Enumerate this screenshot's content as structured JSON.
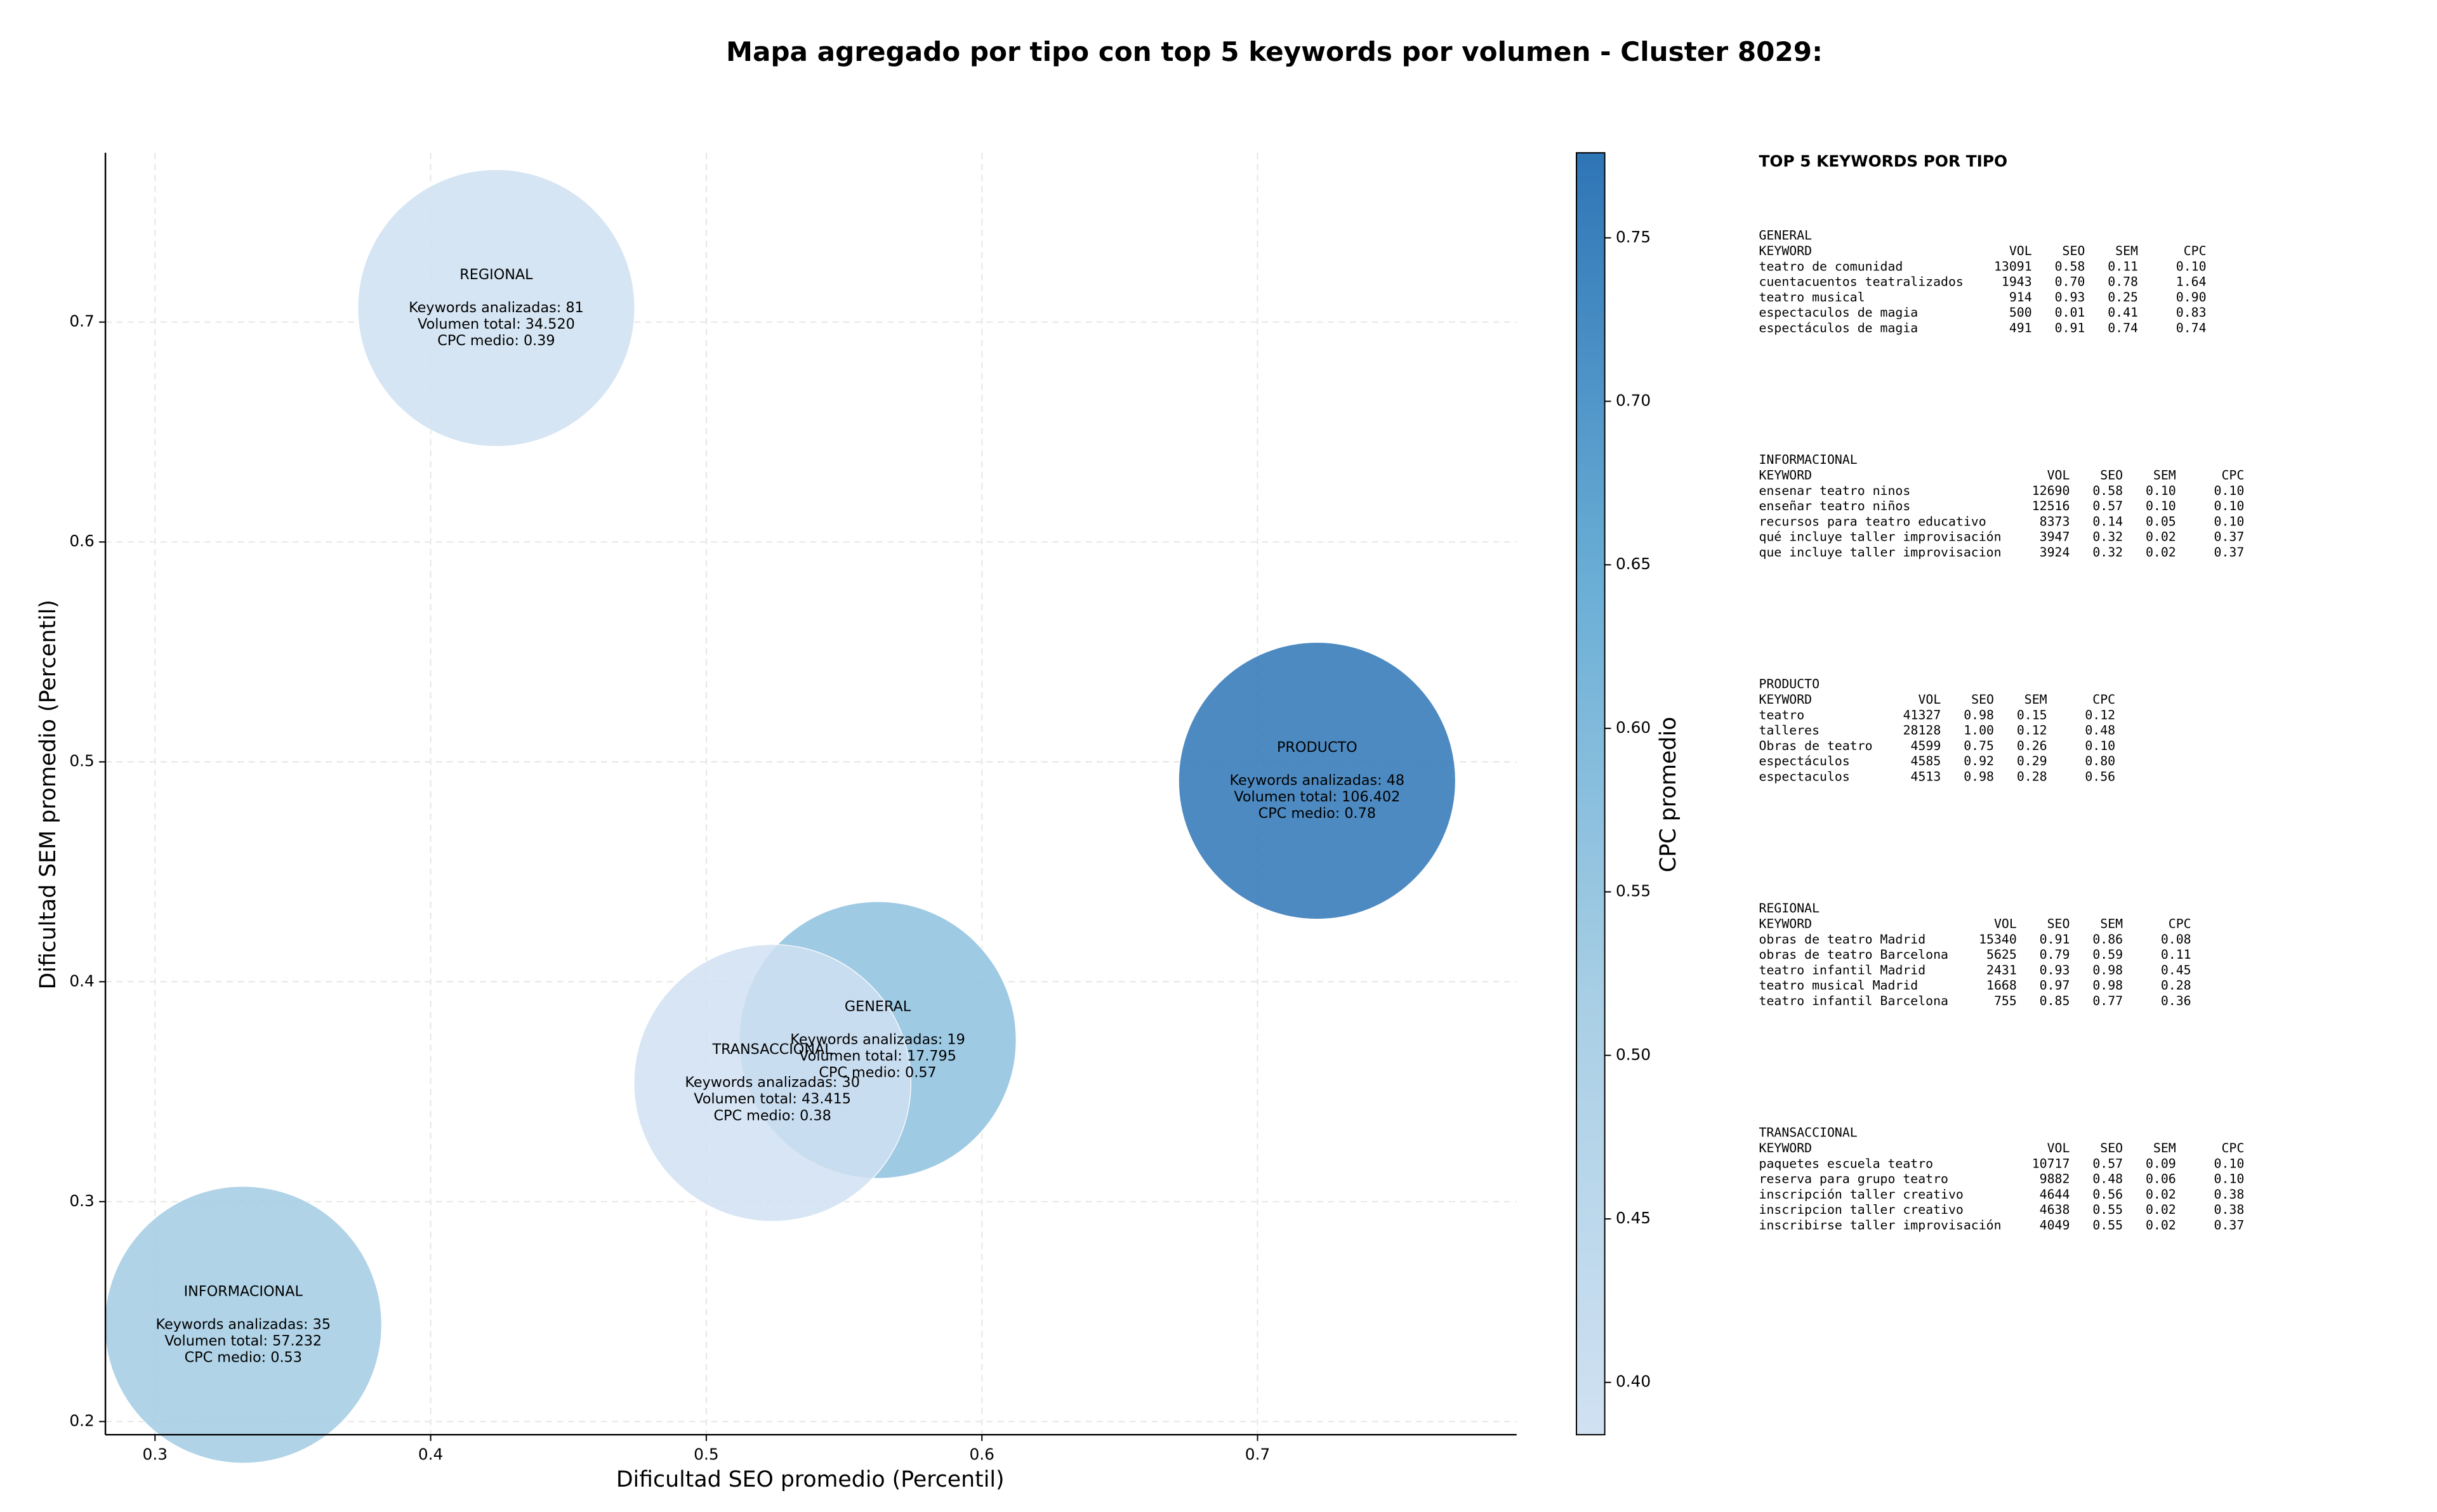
{
  "chart_data": {
    "type": "scatter",
    "title": "Mapa agregado por tipo con top 5 keywords por volumen - Cluster 8029:",
    "xlabel": "Dificultad SEO promedio (Percentil)",
    "ylabel": "Dificultad SEM promedio (Percentil)",
    "xlim": [
      0.282,
      0.794
    ],
    "ylim": [
      0.194,
      0.777
    ],
    "xticks": [
      0.3,
      0.4,
      0.5,
      0.6,
      0.7
    ],
    "yticks": [
      0.2,
      0.3,
      0.4,
      0.5,
      0.6,
      0.7
    ],
    "grid": true,
    "colorbar": {
      "label": "CPC promedio",
      "lim": [
        0.384,
        0.776
      ],
      "ticks": [
        {
          "value": 0.4,
          "label": "0.40"
        },
        0.45,
        {
          "value": 0.5,
          "label": "0.50"
        },
        0.55,
        {
          "value": 0.6,
          "label": "0.60"
        },
        0.65,
        {
          "value": 0.7,
          "label": "0.70"
        },
        0.75
      ],
      "colormap": [
        "#d0e1f2",
        "#a9cfe5",
        "#6aaed6",
        "#2e75b6"
      ]
    },
    "points": [
      {
        "name": "REGIONAL",
        "x": 0.4238,
        "y": 0.7064,
        "cpc": 0.39,
        "lines": [
          "Keywords analizadas: 81",
          "Volumen total: 34.520",
          "CPC medio: 0.39"
        ]
      },
      {
        "name": "PRODUCTO",
        "x": 0.7216,
        "y": 0.4914,
        "cpc": 0.78,
        "lines": [
          "Keywords analizadas: 48",
          "Volumen total: 106.402",
          "CPC medio: 0.78"
        ]
      },
      {
        "name": "GENERAL",
        "x": 0.5622,
        "y": 0.3735,
        "cpc": 0.57,
        "lines": [
          "Keywords analizadas: 19",
          "Volumen total: 17.795",
          "CPC medio: 0.57"
        ]
      },
      {
        "name": "TRANSACCIONAL",
        "x": 0.524,
        "y": 0.354,
        "cpc": 0.38,
        "lines": [
          "Keywords analizadas: 30",
          "Volumen total: 43.415",
          "CPC medio: 0.38"
        ]
      },
      {
        "name": "INFORMACIONAL",
        "x": 0.332,
        "y": 0.244,
        "cpc": 0.53,
        "lines": [
          "Keywords analizadas: 35",
          "Volumen total: 57.232",
          "CPC medio: 0.53"
        ]
      }
    ]
  },
  "panel": {
    "title": "TOP 5 KEYWORDS POR TIPO",
    "groups": [
      {
        "name": "GENERAL",
        "columns": [
          "KEYWORD",
          "VOL",
          "SEO",
          "SEM",
          "CPC"
        ],
        "rows": [
          [
            "teatro de comunidad",
            "13091",
            "0.58",
            "0.11",
            "0.10"
          ],
          [
            "cuentacuentos teatralizados",
            "1943",
            "0.70",
            "0.78",
            "1.64"
          ],
          [
            "teatro musical",
            "914",
            "0.93",
            "0.25",
            "0.90"
          ],
          [
            "espectaculos de magia",
            "500",
            "0.01",
            "0.41",
            "0.83"
          ],
          [
            "espectáculos de magia",
            "491",
            "0.91",
            "0.74",
            "0.74"
          ]
        ]
      },
      {
        "name": "INFORMACIONAL",
        "columns": [
          "KEYWORD",
          "VOL",
          "SEO",
          "SEM",
          "CPC"
        ],
        "rows": [
          [
            "ensenar teatro ninos",
            "12690",
            "0.58",
            "0.10",
            "0.10"
          ],
          [
            "enseñar teatro niños",
            "12516",
            "0.57",
            "0.10",
            "0.10"
          ],
          [
            "recursos para teatro educativo",
            "8373",
            "0.14",
            "0.05",
            "0.10"
          ],
          [
            "qué incluye taller improvisación",
            "3947",
            "0.32",
            "0.02",
            "0.37"
          ],
          [
            "que incluye taller improvisacion",
            "3924",
            "0.32",
            "0.02",
            "0.37"
          ]
        ]
      },
      {
        "name": "PRODUCTO",
        "columns": [
          "KEYWORD",
          "VOL",
          "SEO",
          "SEM",
          "CPC"
        ],
        "rows": [
          [
            "teatro",
            "41327",
            "0.98",
            "0.15",
            "0.12"
          ],
          [
            "talleres",
            "28128",
            "1.00",
            "0.12",
            "0.48"
          ],
          [
            "Obras de teatro",
            "4599",
            "0.75",
            "0.26",
            "0.10"
          ],
          [
            "espectáculos",
            "4585",
            "0.92",
            "0.29",
            "0.80"
          ],
          [
            "espectaculos",
            "4513",
            "0.98",
            "0.28",
            "0.56"
          ]
        ]
      },
      {
        "name": "REGIONAL",
        "columns": [
          "KEYWORD",
          "VOL",
          "SEO",
          "SEM",
          "CPC"
        ],
        "rows": [
          [
            "obras de teatro Madrid",
            "15340",
            "0.91",
            "0.86",
            "0.08"
          ],
          [
            "obras de teatro Barcelona",
            "5625",
            "0.79",
            "0.59",
            "0.11"
          ],
          [
            "teatro infantil Madrid",
            "2431",
            "0.93",
            "0.98",
            "0.45"
          ],
          [
            "teatro musical Madrid",
            "1668",
            "0.97",
            "0.98",
            "0.28"
          ],
          [
            "teatro infantil Barcelona",
            "755",
            "0.85",
            "0.77",
            "0.36"
          ]
        ]
      },
      {
        "name": "TRANSACCIONAL",
        "columns": [
          "KEYWORD",
          "VOL",
          "SEO",
          "SEM",
          "CPC"
        ],
        "rows": [
          [
            "paquetes escuela teatro",
            "10717",
            "0.57",
            "0.09",
            "0.10"
          ],
          [
            "reserva para grupo teatro",
            "9882",
            "0.48",
            "0.06",
            "0.10"
          ],
          [
            "inscripción taller creativo",
            "4644",
            "0.56",
            "0.02",
            "0.38"
          ],
          [
            "inscripcion taller creativo",
            "4638",
            "0.55",
            "0.02",
            "0.38"
          ],
          [
            "inscribirse taller improvisación",
            "4049",
            "0.55",
            "0.02",
            "0.37"
          ]
        ]
      }
    ]
  }
}
